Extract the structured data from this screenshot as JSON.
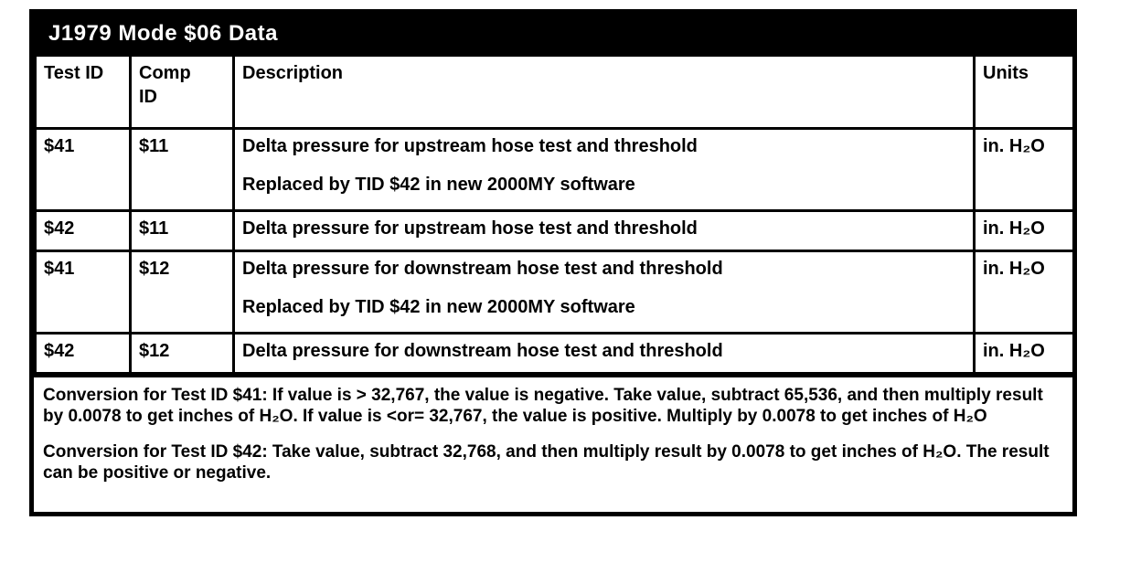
{
  "table": {
    "title": "J1979 Mode $06 Data",
    "columns": {
      "test_id": "Test ID",
      "comp_id": "Comp ID",
      "description": "Description",
      "units": "Units"
    },
    "rows": [
      {
        "test_id": "$41",
        "comp_id": "$11",
        "description": "Delta pressure for upstream hose test and threshold",
        "note": "Replaced by TID $42 in new 2000MY software",
        "units": "in. H₂O"
      },
      {
        "test_id": "$42",
        "comp_id": "$11",
        "description": "Delta pressure for upstream hose test and threshold",
        "note": "",
        "units": "in. H₂O"
      },
      {
        "test_id": "$41",
        "comp_id": "$12",
        "description": "Delta pressure for downstream hose test and threshold",
        "note": "Replaced by TID $42 in new 2000MY software",
        "units": "in. H₂O"
      },
      {
        "test_id": "$42",
        "comp_id": "$12",
        "description": "Delta pressure for downstream hose test and threshold",
        "note": "",
        "units": "in. H₂O"
      }
    ],
    "footnotes": [
      "Conversion for Test ID $41: If value is > 32,767, the value is negative. Take value, subtract 65,536, and then multiply result by 0.0078 to get inches of H₂O. If value is <or= 32,767, the value is positive. Multiply by 0.0078 to get inches of H₂O",
      "Conversion for Test ID $42: Take value, subtract 32,768, and then multiply result by 0.0078 to get inches of H₂O. The result can be positive or negative."
    ],
    "colors": {
      "title_bg": "#000000",
      "title_fg": "#ffffff",
      "border": "#000000",
      "background": "#ffffff"
    }
  }
}
